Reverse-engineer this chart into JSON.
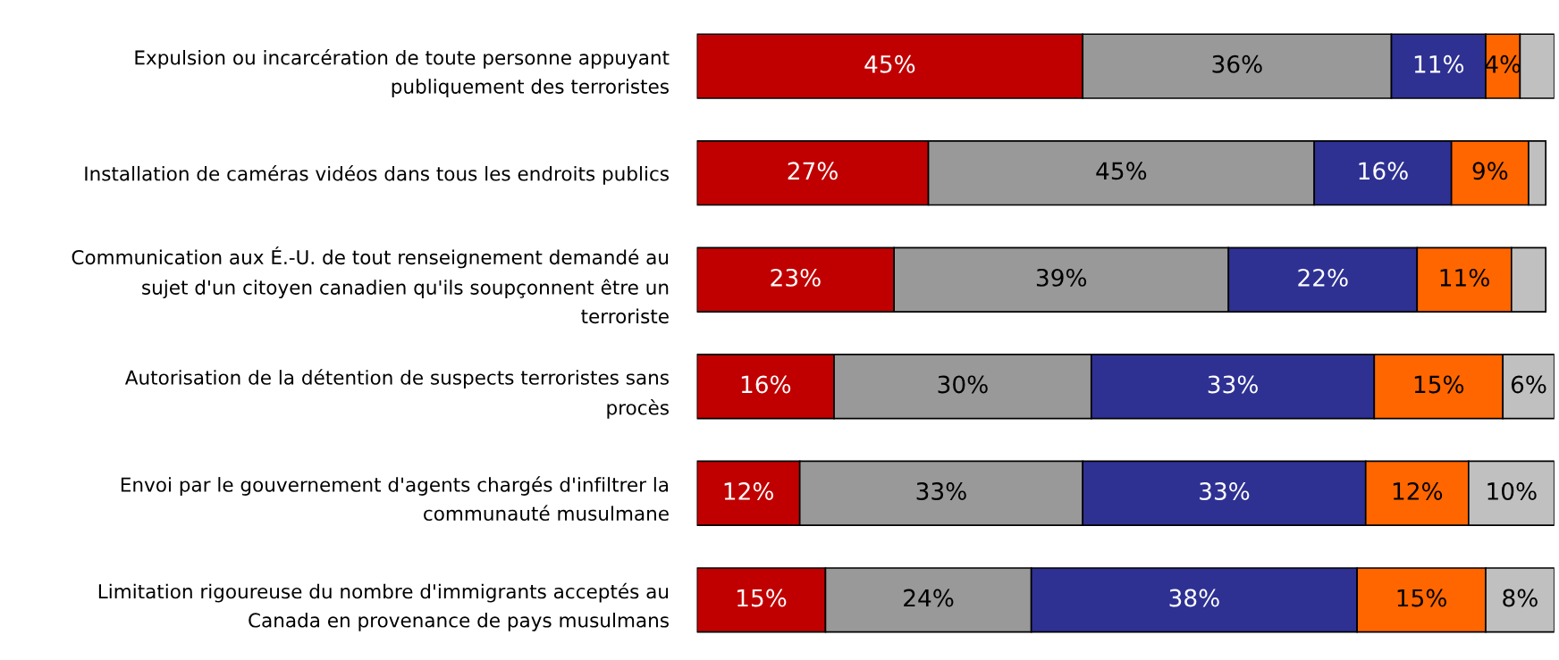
{
  "chart_data": {
    "type": "bar",
    "orientation": "horizontal",
    "stacked": true,
    "xlim": [
      0,
      100
    ],
    "tick_labels": "y",
    "grid": false,
    "legend": false,
    "categories": [
      "Expulsion ou incarcération de toute personne appuyant\npubliquement des terroristes",
      "Installation de caméras vidéos dans tous les endroits publics",
      "Communication aux É.-U. de tout renseignement demandé au\nsujet d'un citoyen canadien qu'ils soupçonnent être un\nterroriste",
      "Autorisation de la détention de suspects terroristes sans\nprocès",
      "Envoi par le gouvernement d'agents chargés d'infiltrer la\ncommunauté musulmane",
      "Limitation rigoureuse du nombre d'immigrants acceptés au\nCanada en provenance de pays musulmans"
    ],
    "series": [
      {
        "color": "#c00000",
        "values": [
          45,
          27,
          23,
          16,
          12,
          15
        ],
        "value_labels": [
          "45%",
          "27%",
          "23%",
          "16%",
          "12%",
          "15%"
        ]
      },
      {
        "color": "#999999",
        "values": [
          36,
          45,
          39,
          30,
          33,
          24
        ],
        "value_labels": [
          "36%",
          "45%",
          "39%",
          "30%",
          "33%",
          "24%"
        ]
      },
      {
        "color": "#2e3192",
        "values": [
          11,
          16,
          22,
          33,
          33,
          38
        ],
        "value_labels": [
          "11%",
          "16%",
          "22%",
          "33%",
          "33%",
          "38%"
        ]
      },
      {
        "color": "#ff6600",
        "values": [
          4,
          9,
          11,
          15,
          12,
          15
        ],
        "value_labels": [
          "4%",
          "9%",
          "11%",
          "15%",
          "12%",
          "15%"
        ]
      },
      {
        "color": "#c0c0c0",
        "values": [
          4,
          2,
          4,
          6,
          10,
          8
        ],
        "value_labels": [
          null,
          null,
          null,
          "6%",
          "10%",
          "8%"
        ]
      }
    ]
  }
}
